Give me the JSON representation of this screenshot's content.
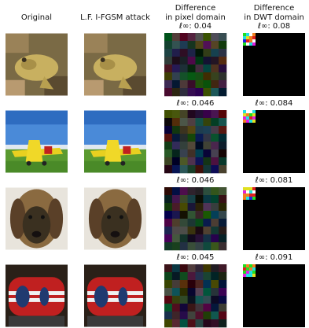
{
  "headers": [
    [
      "Original"
    ],
    [
      "L.F. I-FGSM attack"
    ],
    [
      "Difference",
      "in pixel domain"
    ],
    [
      "Difference",
      "in DWT domain"
    ]
  ],
  "rows": [
    {
      "pixel_label": "ℓ∞: 0.04",
      "dwt_label": "ℓ∞: 0.08"
    },
    {
      "pixel_label": "ℓ∞: 0.046",
      "dwt_label": "ℓ∞: 0.084"
    },
    {
      "pixel_label": "ℓ∞: 0.046",
      "dwt_label": "ℓ∞: 0.081"
    },
    {
      "pixel_label": "ℓ∞: 0.045",
      "dwt_label": "ℓ∞: 0.091"
    }
  ]
}
